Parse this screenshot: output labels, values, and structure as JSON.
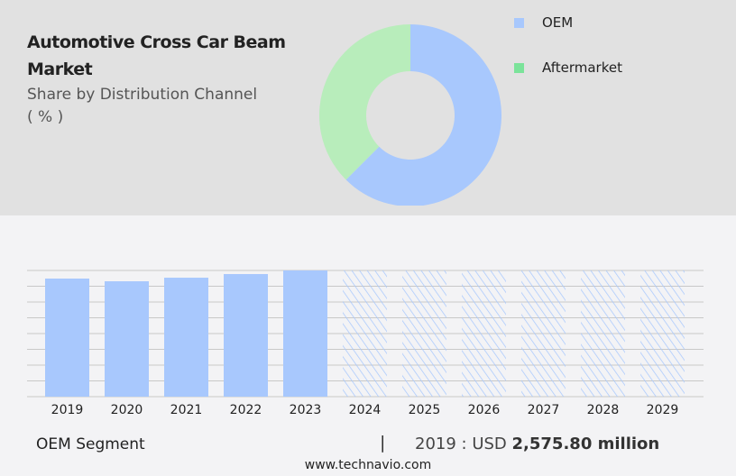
{
  "title": "Automotive Cross Car Beam Market",
  "subtitle": "Share by Distribution Channel",
  "unit": "( % )",
  "chart_data": [
    {
      "type": "pie",
      "variant": "donut",
      "categories": [
        "OEM",
        "Aftermarket"
      ],
      "values": [
        62.5,
        37.5
      ],
      "colors": [
        "#a8c8fd",
        "#b8edbb"
      ],
      "legend_colors": [
        "#a8c8fd",
        "#7be39a"
      ],
      "legend_placement": "right"
    },
    {
      "type": "bar",
      "categories": [
        "2019",
        "2020",
        "2021",
        "2022",
        "2023",
        "2024",
        "2025",
        "2026",
        "2027",
        "2028",
        "2029"
      ],
      "values": [
        2575.8,
        2517,
        2595,
        2674,
        2753,
        null,
        null,
        null,
        null,
        null,
        null
      ],
      "forecast_from": "2024",
      "forecast_style": "hatched",
      "color": "#a8c8fd",
      "grid": true,
      "ylim": [
        0,
        2753
      ]
    }
  ],
  "footer": {
    "segment": "OEM Segment",
    "separator": "|",
    "value_prefix": "2019 : USD",
    "value": "2,575.80 million",
    "site": "www.technavio.com"
  }
}
